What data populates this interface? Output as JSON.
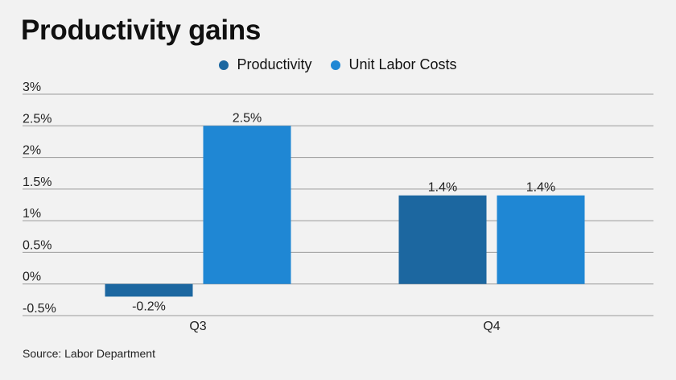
{
  "chart_data": {
    "type": "bar",
    "title": "Productivity gains",
    "categories": [
      "Q3",
      "Q4"
    ],
    "series": [
      {
        "name": "Productivity",
        "values": [
          -0.2,
          1.4
        ],
        "labels": [
          "-0.2%",
          "1.4%"
        ],
        "color": "#1c67a0"
      },
      {
        "name": "Unit Labor Costs",
        "values": [
          2.5,
          1.4
        ],
        "labels": [
          "2.5%",
          "1.4%"
        ],
        "color": "#1f87d4"
      }
    ],
    "ylim": [
      -0.5,
      3
    ],
    "yticks": [
      3,
      2.5,
      2,
      1.5,
      1,
      0.5,
      0,
      -0.5
    ],
    "ytick_labels": [
      "3%",
      "2.5%",
      "2%",
      "1.5%",
      "1%",
      "0.5%",
      "0%",
      "-0.5%"
    ],
    "grid": true,
    "legend_position": "top-center",
    "xlabel": "",
    "ylabel": ""
  },
  "source": "Source: Labor Department"
}
